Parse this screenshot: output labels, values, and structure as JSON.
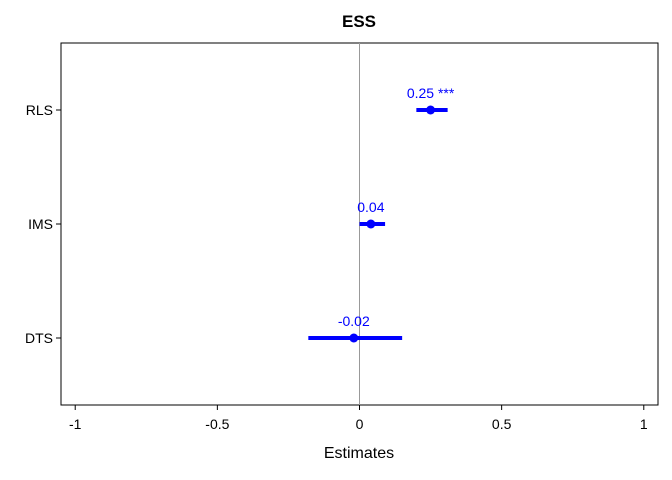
{
  "chart_data": {
    "type": "forest",
    "title": "ESS",
    "xlabel": "Estimates",
    "ylabel": "",
    "xlim": [
      -1.05,
      1.05
    ],
    "x_ticks": [
      -1,
      -0.5,
      0,
      0.5,
      1
    ],
    "x_tick_labels": [
      "-1",
      "-0.5",
      "0",
      "0.5",
      "1"
    ],
    "reference_line": 0,
    "grid": false,
    "categories": [
      "RLS",
      "IMS",
      "DTS"
    ],
    "estimates": [
      0.25,
      0.04,
      -0.02
    ],
    "ci_lower": [
      0.2,
      0.0,
      -0.18
    ],
    "ci_upper": [
      0.31,
      0.09,
      0.15
    ],
    "labels": [
      "0.25 ***",
      "0.04",
      "-0.02"
    ],
    "colors": {
      "estimate": "#0000ff",
      "reference_line": "#999999",
      "frame": "#000000"
    }
  }
}
